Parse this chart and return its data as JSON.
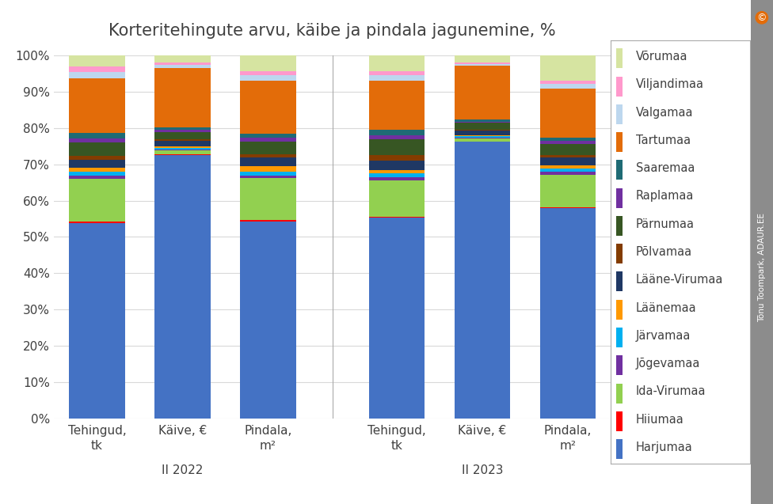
{
  "title": "Korteritehingute arvu, käibe ja pindala jagunemine, %",
  "regions": [
    "Harjumaa",
    "Hiiumaa",
    "Ida-Virumaa",
    "Jõgevamaa",
    "Järvamaa",
    "Läänemaa",
    "Lääne-Virumaa",
    "Põlvamaa",
    "Pärnumaa",
    "Raplamaa",
    "Saaremaa",
    "Tartumaa",
    "Valgamaa",
    "Viljandimaa",
    "Võrumaa"
  ],
  "colors": [
    "#4472C4",
    "#FF0000",
    "#92D050",
    "#7030A0",
    "#00B0F0",
    "#FF9900",
    "#1F3864",
    "#833C00",
    "#375623",
    "#7030A0",
    "#1F6B75",
    "#E36C09",
    "#BDD7EE",
    "#FF99CC",
    "#D6E4A1"
  ],
  "data": {
    "II2022_Tehingud": [
      50.0,
      0.4,
      11.0,
      0.8,
      1.0,
      1.0,
      2.0,
      1.0,
      3.5,
      1.0,
      1.5,
      14.0,
      1.5,
      1.5,
      2.8
    ],
    "II2022_Kaive": [
      73.0,
      0.2,
      1.0,
      0.4,
      0.4,
      0.5,
      1.5,
      0.4,
      2.0,
      0.5,
      0.8,
      16.5,
      0.8,
      0.7,
      1.9
    ],
    "II2022_Pindala": [
      54.0,
      0.3,
      11.5,
      0.8,
      1.0,
      1.5,
      2.5,
      0.8,
      3.5,
      1.0,
      1.2,
      14.5,
      1.5,
      1.0,
      4.4
    ],
    "II2023_Tehingud": [
      55.0,
      0.3,
      10.0,
      0.8,
      1.0,
      1.0,
      2.5,
      1.5,
      4.5,
      1.0,
      1.5,
      13.5,
      1.5,
      1.0,
      4.4
    ],
    "II2023_Kaive": [
      77.0,
      0.1,
      0.8,
      0.3,
      0.3,
      0.3,
      1.2,
      0.4,
      1.8,
      0.4,
      0.5,
      15.0,
      0.5,
      0.5,
      1.9
    ],
    "II2023_Pindala": [
      58.0,
      0.2,
      9.0,
      0.8,
      0.8,
      1.0,
      2.0,
      0.8,
      3.0,
      0.8,
      1.0,
      13.5,
      1.2,
      0.9,
      7.0
    ]
  },
  "bar_x_labels": [
    "Tehingud,\ntk",
    "Käive, €",
    "Pindala,\nm²",
    "Tehingud,\ntk",
    "Käive, €",
    "Pindala,\nm²"
  ],
  "group_labels": [
    "II 2022",
    "II 2023"
  ],
  "bar_width": 0.65,
  "background_color": "#FFFFFF",
  "grid_color": "#D9D9D9",
  "title_fontsize": 15,
  "tick_fontsize": 11,
  "legend_fontsize": 10.5,
  "label_color": "#404040"
}
